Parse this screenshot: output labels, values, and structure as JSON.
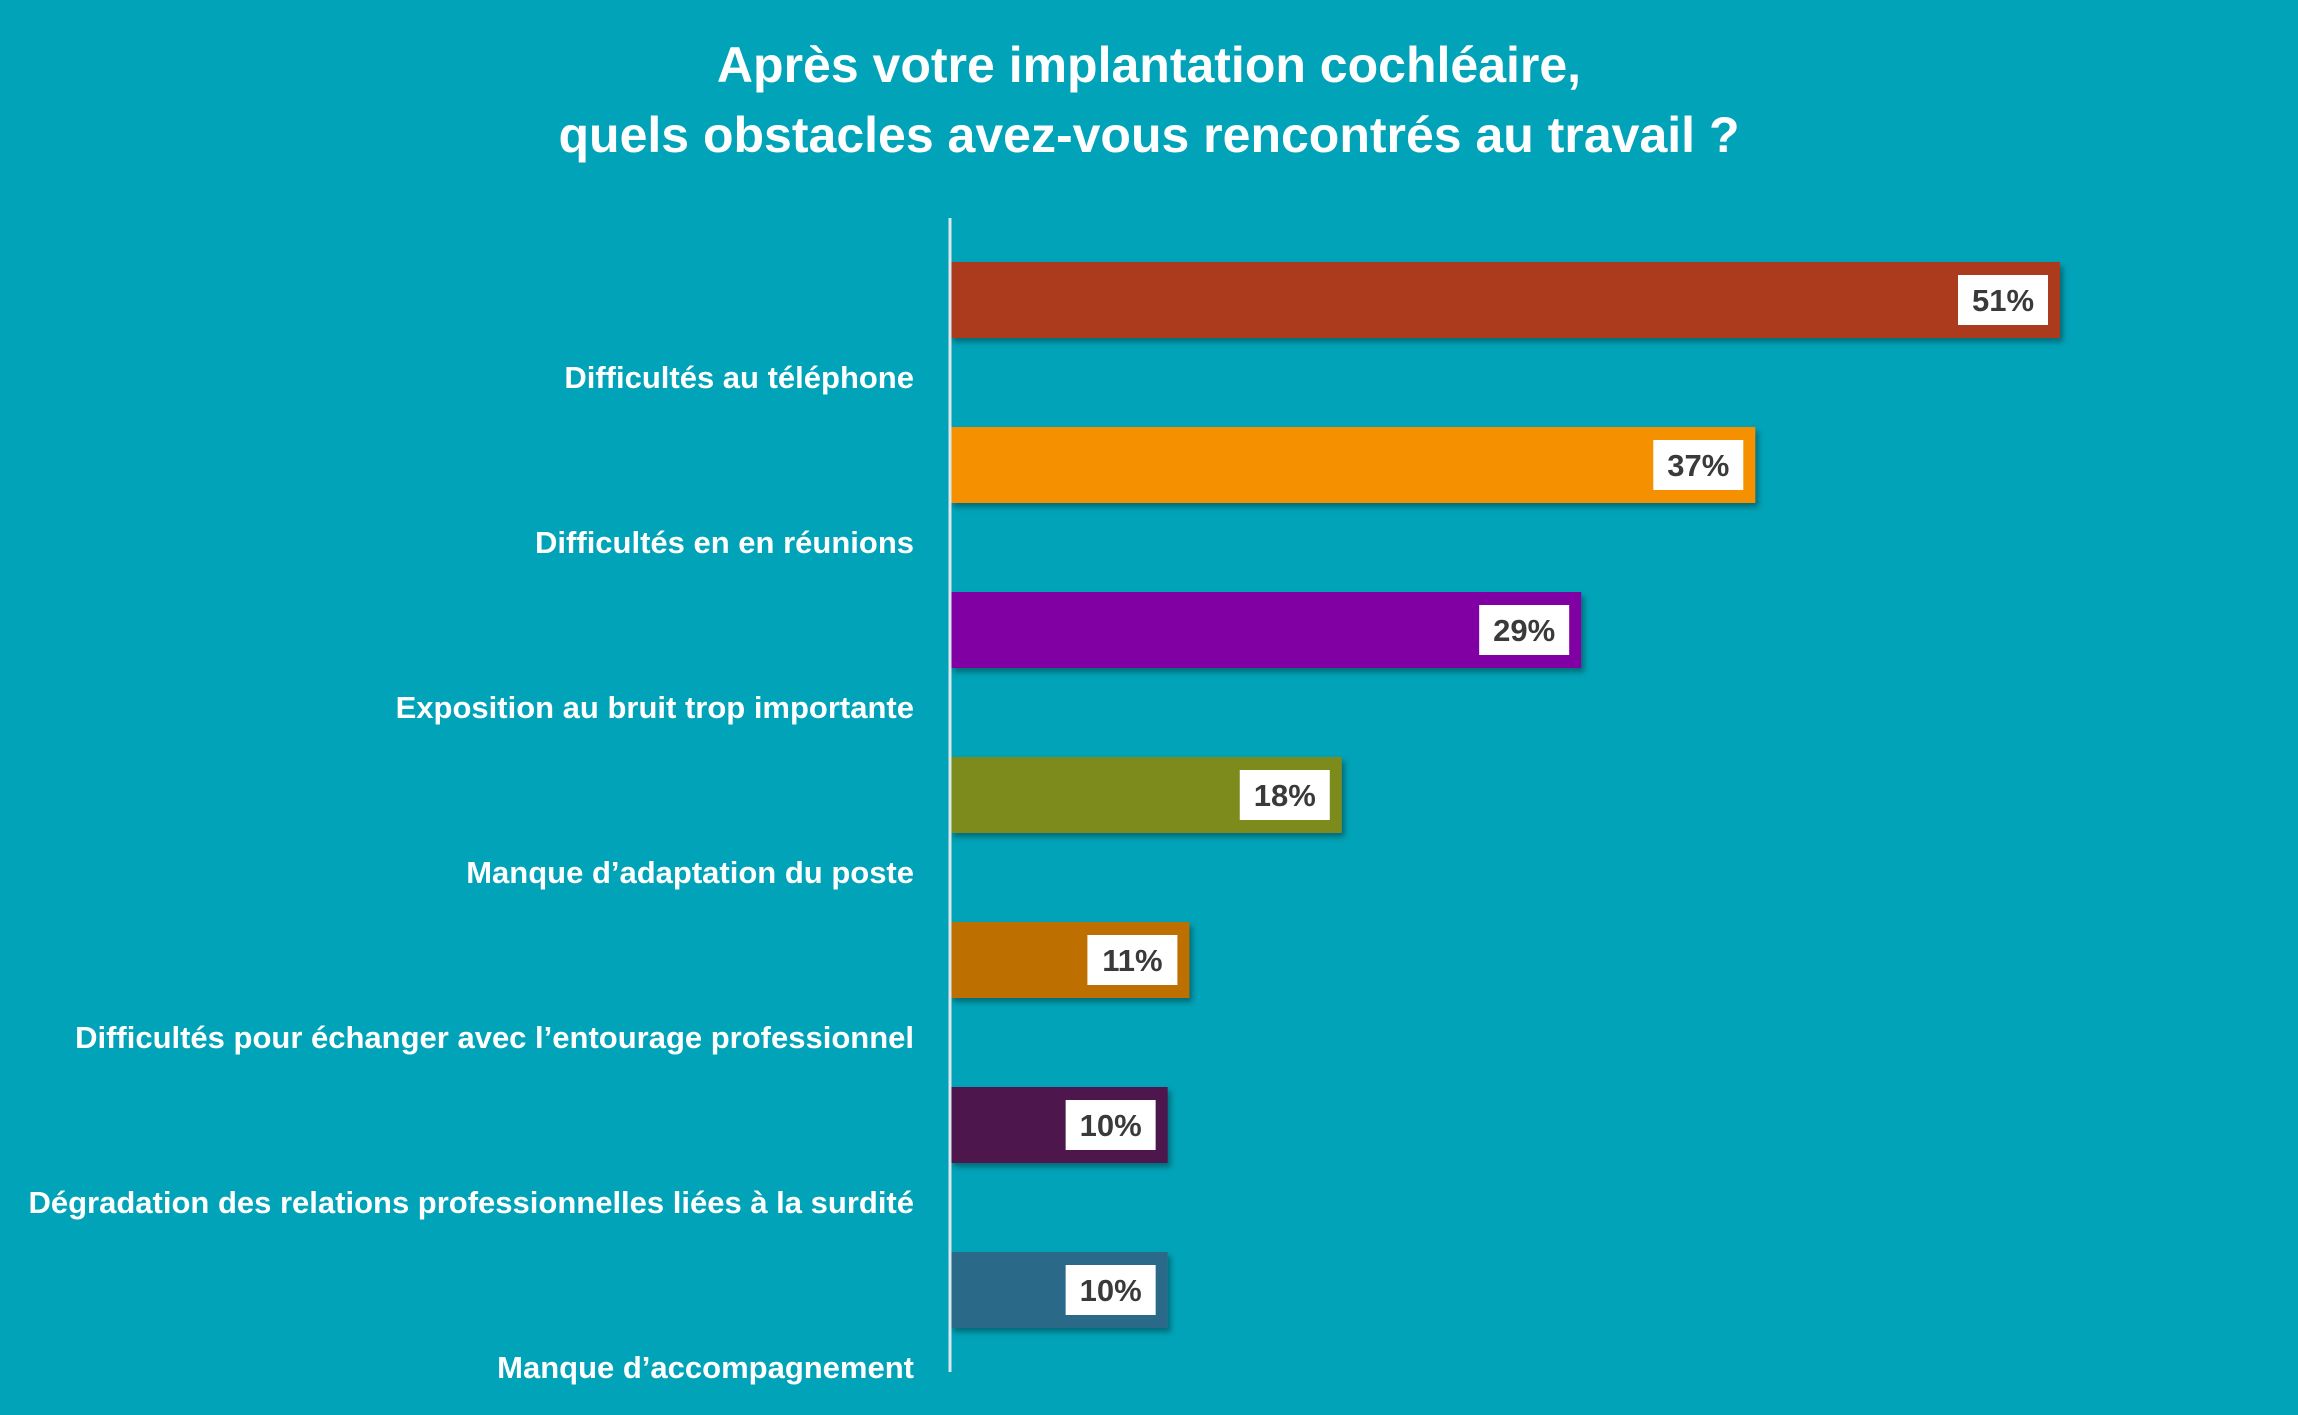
{
  "title": {
    "line1": "Après votre implantation cochléaire,",
    "line2": "quels obstacles avez-vous rencontrés au travail ?"
  },
  "colors": {
    "background": "#01a3b8",
    "axis": "#dbe9ee",
    "label_box": "#ffffff"
  },
  "chart_data": {
    "type": "bar",
    "orientation": "horizontal",
    "title": "Après votre implantation cochléaire, quels obstacles avez-vous rencontrés au travail ?",
    "xlabel": "",
    "ylabel": "",
    "xlim": [
      0,
      51
    ],
    "grid": false,
    "legend": "none",
    "categories": [
      "Difficultés au téléphone",
      "Difficultés en en réunions",
      "Exposition au bruit trop importante",
      "Manque d’adaptation du poste",
      "Difficultés pour échanger avec l’entourage professionnel",
      "Dégradation des relations professionnelles liées à la surdité",
      "Manque d’accompagnement"
    ],
    "values": [
      51,
      37,
      29,
      18,
      11,
      10,
      10
    ],
    "value_labels": [
      "51%",
      "37%",
      "29%",
      "18%",
      "11%",
      "10%",
      "10%"
    ],
    "bar_colors": [
      "#ab3a1c",
      "#f59100",
      "#8100a4",
      "#7d8a1d",
      "#bd7000",
      "#4d124e",
      "#2c6b88"
    ]
  }
}
